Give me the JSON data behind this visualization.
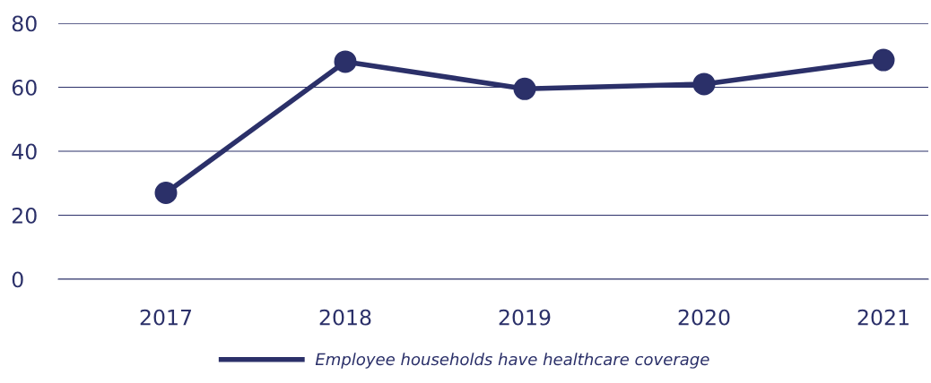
{
  "chart_data": {
    "type": "line",
    "categories": [
      "2017",
      "2018",
      "2019",
      "2020",
      "2021"
    ],
    "series": [
      {
        "name": "Employee households have healthcare coverage",
        "color": "#2b3069",
        "values": [
          27,
          68,
          59.5,
          61,
          68.5
        ]
      }
    ],
    "ylim": [
      0,
      80
    ],
    "yticks": [
      0,
      20,
      40,
      60,
      80
    ],
    "grid": "y",
    "legend": "bottom",
    "marker": "circle",
    "line_style": "solid"
  }
}
